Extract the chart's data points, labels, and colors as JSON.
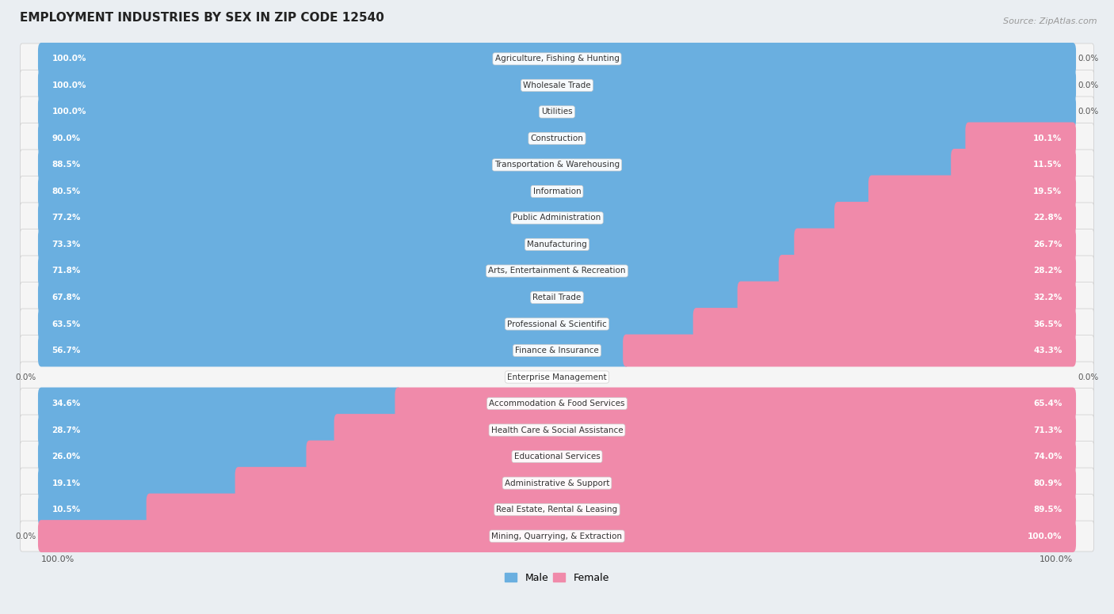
{
  "title": "EMPLOYMENT INDUSTRIES BY SEX IN ZIP CODE 12540",
  "source": "Source: ZipAtlas.com",
  "male_color": "#6aafe0",
  "female_color": "#f08aaa",
  "background_color": "#eaeef2",
  "row_bg_color": "#f5f5f5",
  "categories": [
    "Agriculture, Fishing & Hunting",
    "Wholesale Trade",
    "Utilities",
    "Construction",
    "Transportation & Warehousing",
    "Information",
    "Public Administration",
    "Manufacturing",
    "Arts, Entertainment & Recreation",
    "Retail Trade",
    "Professional & Scientific",
    "Finance & Insurance",
    "Enterprise Management",
    "Accommodation & Food Services",
    "Health Care & Social Assistance",
    "Educational Services",
    "Administrative & Support",
    "Real Estate, Rental & Leasing",
    "Mining, Quarrying, & Extraction"
  ],
  "male_pct": [
    100.0,
    100.0,
    100.0,
    90.0,
    88.5,
    80.5,
    77.2,
    73.3,
    71.8,
    67.8,
    63.5,
    56.7,
    0.0,
    34.6,
    28.7,
    26.0,
    19.1,
    10.5,
    0.0
  ],
  "female_pct": [
    0.0,
    0.0,
    0.0,
    10.1,
    11.5,
    19.5,
    22.8,
    26.7,
    28.2,
    32.2,
    36.5,
    43.3,
    0.0,
    65.4,
    71.3,
    74.0,
    80.9,
    89.5,
    100.0
  ],
  "figsize": [
    14.06,
    7.76
  ],
  "dpi": 100
}
